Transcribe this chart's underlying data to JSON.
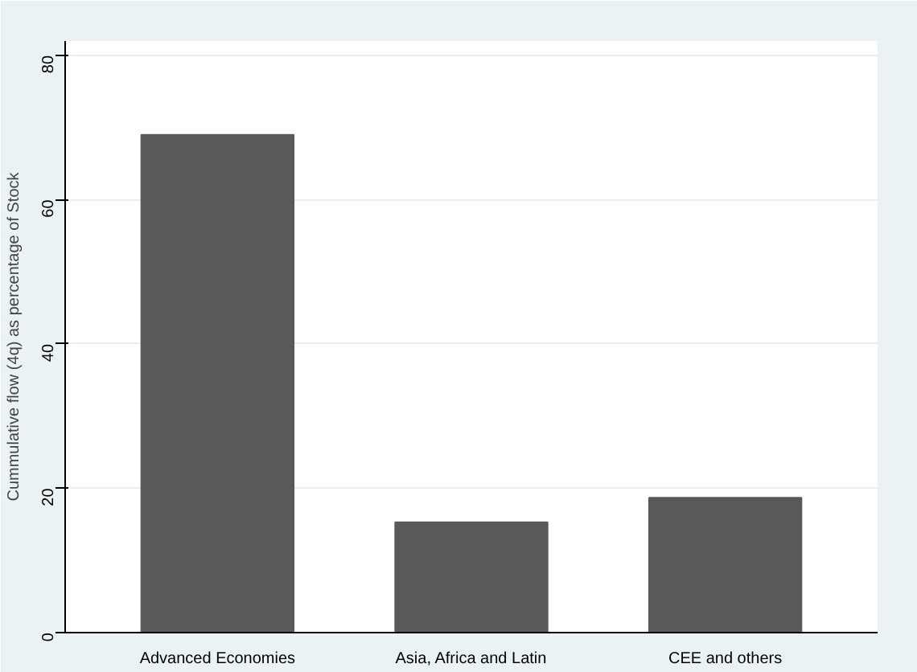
{
  "chart_data": {
    "type": "bar",
    "ylabel": "Cummulative flow (4q) as percentage of Stock",
    "categories": [
      "Advanced Economies",
      "Asia, Africa and Latin",
      "CEE and others"
    ],
    "values": [
      69,
      15.3,
      18.7
    ],
    "color": "#595959",
    "ylim": [
      0,
      82
    ],
    "yticks": [
      0,
      20,
      40,
      60,
      80
    ],
    "grid": "y"
  }
}
